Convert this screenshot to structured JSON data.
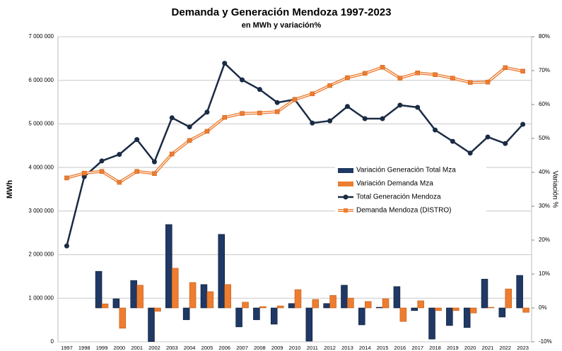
{
  "chart_data": {
    "type": "combo",
    "title": "Demanda y Generación Mendoza 1997-2023",
    "subtitle": "en MWh y variación%",
    "y_label": "MWh",
    "y2_label": "Variación %",
    "categories": [
      "1997",
      "1998",
      "1999",
      "2000",
      "2001",
      "2002",
      "2003",
      "2004",
      "2005",
      "2006",
      "2007",
      "2008",
      "2009",
      "2010",
      "2011",
      "2012",
      "2013",
      "2014",
      "2015",
      "2016",
      "2017",
      "2018",
      "2019",
      "2020",
      "2021",
      "2022",
      "2023"
    ],
    "ylim": [
      0,
      7000000
    ],
    "yticks": [
      0,
      {
        "value": 1000000,
        "label": "1 000 000"
      },
      {
        "value": 2000000,
        "label": "2 000 000"
      },
      {
        "value": 3000000,
        "label": "3 000 000"
      },
      {
        "value": 4000000,
        "label": "4 000 000"
      },
      {
        "value": 5000000,
        "label": "5 000 000"
      },
      {
        "value": 6000000,
        "label": "6 000 000"
      },
      {
        "value": 7000000,
        "label": "7 000 000"
      }
    ],
    "y2lim": [
      -10,
      80
    ],
    "y2ticks": [
      {
        "value": -10,
        "label": "-10%"
      },
      {
        "value": 0,
        "label": "0%"
      },
      {
        "value": 10,
        "label": "10%"
      },
      {
        "value": 20,
        "label": "20%"
      },
      {
        "value": 30,
        "label": "30%"
      },
      {
        "value": 40,
        "label": "40%"
      },
      {
        "value": 50,
        "label": "50%"
      },
      {
        "value": 60,
        "label": "60%"
      },
      {
        "value": 70,
        "label": "70%"
      },
      {
        "value": 80,
        "label": "80%"
      }
    ],
    "grid": true,
    "series": [
      {
        "name": "Variación Generación Total Mza",
        "type": "bar",
        "axis": "y2",
        "color": "#1f3864",
        "values": [
          null,
          null,
          10.8,
          2.7,
          8.1,
          -10,
          24.6,
          -3.5,
          6.9,
          21.7,
          -5.6,
          -3.5,
          -4.8,
          1.3,
          -9.8,
          1.3,
          6.7,
          -5,
          0.2,
          6.3,
          -0.8,
          -9.2,
          -5.2,
          -5.8,
          8.5,
          -2.7,
          9.6
        ]
      },
      {
        "name": "Variación Demanda Mza",
        "type": "bar",
        "axis": "y2",
        "color": "#ed7d31",
        "values": [
          null,
          null,
          1.2,
          -6,
          6.7,
          -1,
          11.7,
          7.5,
          4.8,
          6.9,
          1.7,
          0.4,
          0.6,
          5.4,
          2.5,
          3.7,
          2.9,
          1.9,
          2.7,
          -4,
          2.1,
          -0.8,
          -0.8,
          -1.5,
          0.2,
          5.6,
          -1.3
        ]
      },
      {
        "name": "Total Generación Mendoza",
        "type": "line",
        "marker": "circle",
        "color": "#1a2b44",
        "values": [
          2200000,
          3790000,
          4150000,
          4300000,
          4640000,
          4130000,
          5140000,
          4930000,
          5270000,
          6390000,
          6010000,
          5790000,
          5490000,
          5560000,
          5020000,
          5070000,
          5400000,
          5120000,
          5120000,
          5430000,
          5380000,
          4860000,
          4600000,
          4330000,
          4700000,
          4550000,
          4990000
        ]
      },
      {
        "name": "Demanda Mendoza (DISTRO)",
        "type": "line",
        "marker": "square",
        "color": "#ed7d31",
        "values": [
          3760000,
          3870000,
          3910000,
          3660000,
          3910000,
          3860000,
          4310000,
          4620000,
          4830000,
          5150000,
          5240000,
          5250000,
          5280000,
          5560000,
          5690000,
          5880000,
          6060000,
          6160000,
          6300000,
          6050000,
          6170000,
          6130000,
          6050000,
          5950000,
          5960000,
          6290000,
          6210000
        ]
      }
    ]
  }
}
